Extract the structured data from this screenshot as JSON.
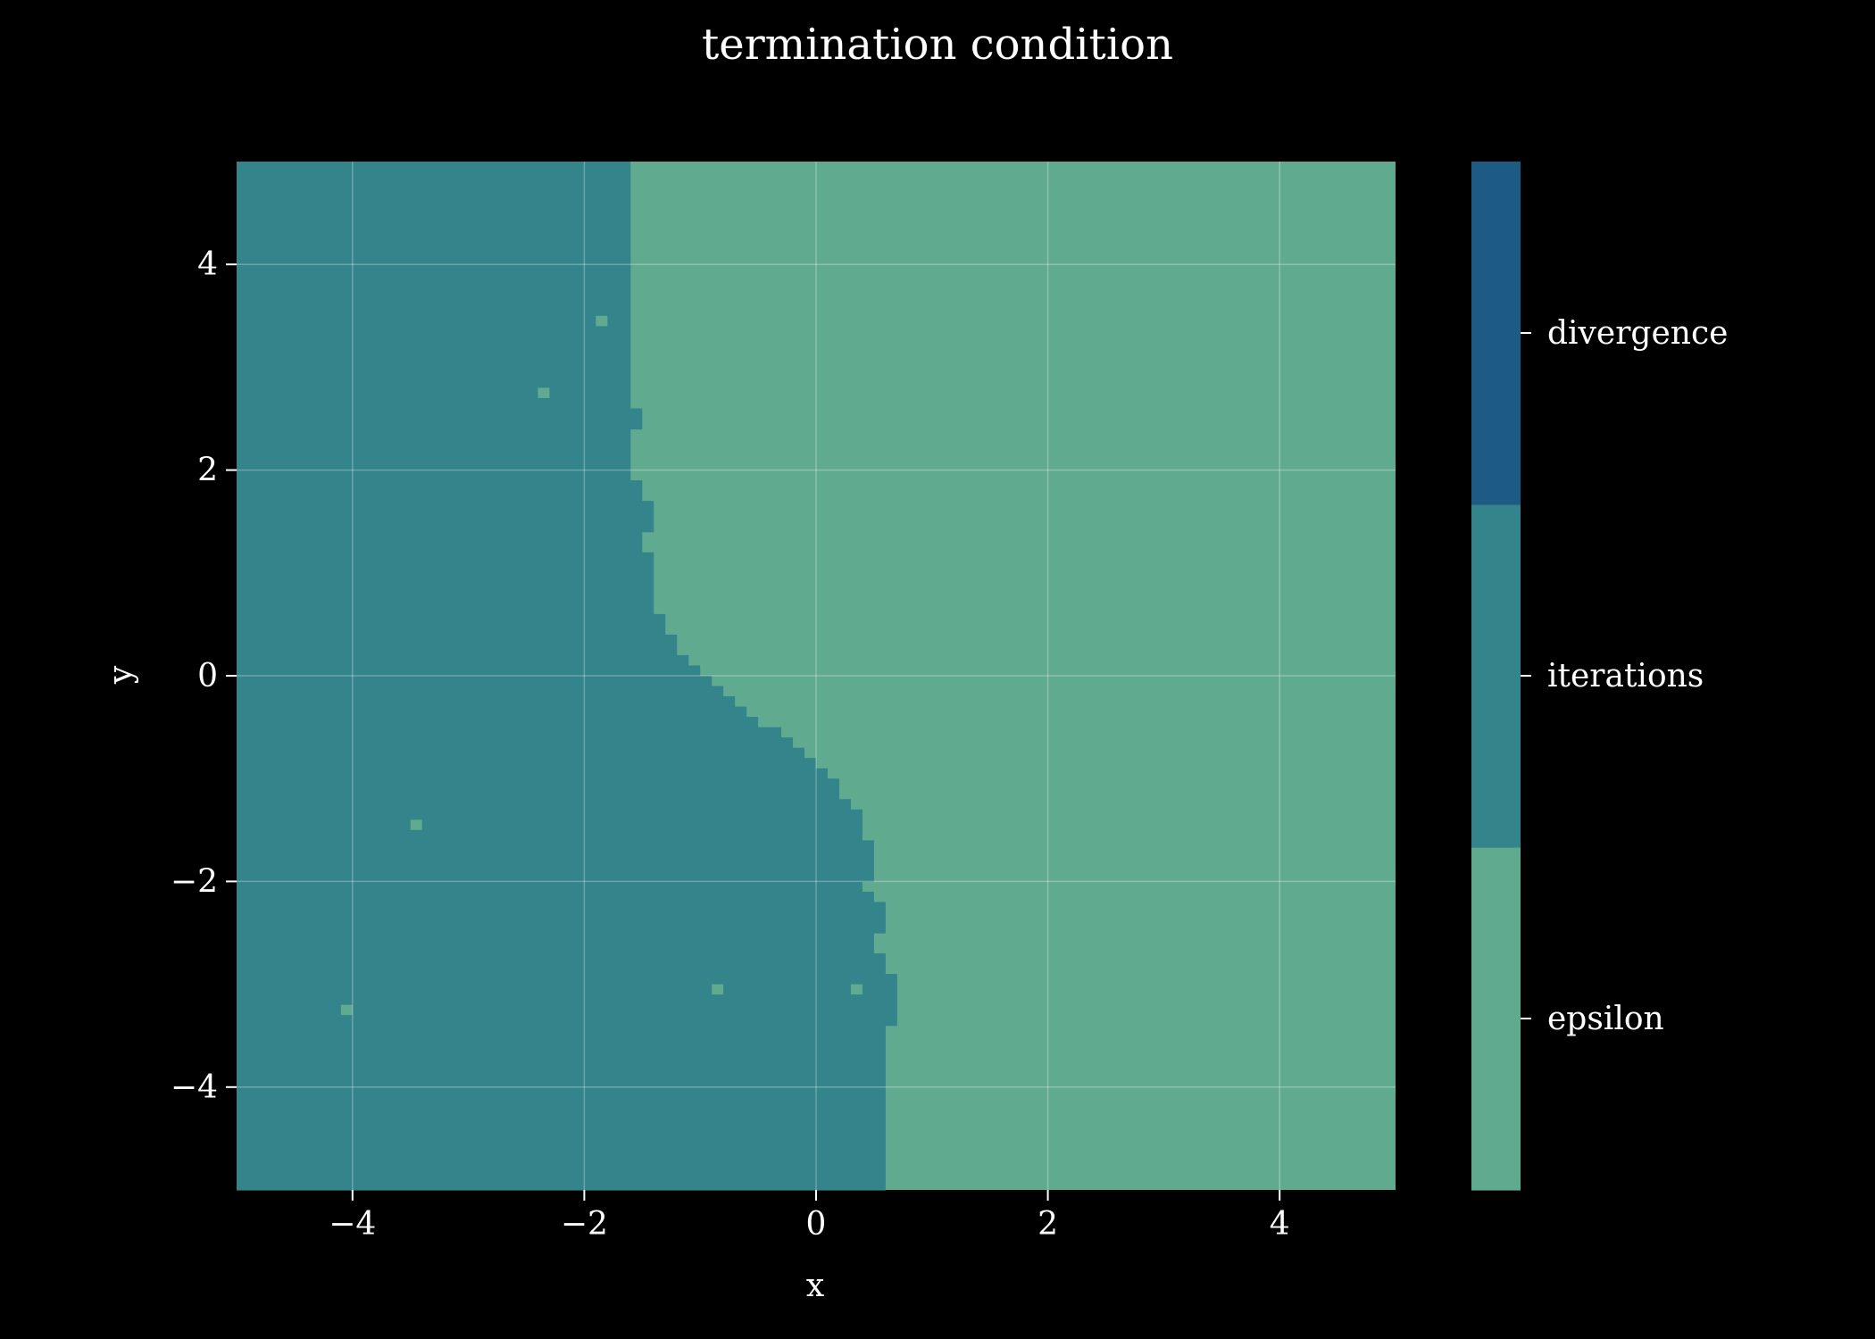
{
  "chart_data": {
    "type": "heatmap",
    "title": "termination condition",
    "xlabel": "x",
    "ylabel": "y",
    "xlim": [
      -5,
      5
    ],
    "ylim": [
      -5,
      5
    ],
    "xticks": [
      -4,
      -2,
      0,
      2,
      4
    ],
    "yticks": [
      -4,
      -2,
      0,
      2,
      4
    ],
    "grid": true,
    "categories": [
      {
        "name": "epsilon",
        "color": "#60aa8f"
      },
      {
        "name": "iterations",
        "color": "#33848b"
      },
      {
        "name": "divergence",
        "color": "#1d5a84"
      }
    ],
    "colorbar": {
      "range": [
        0,
        3
      ],
      "labels": [
        "epsilon",
        "iterations",
        "divergence"
      ]
    },
    "default_category": "epsilon",
    "region_category": "iterations",
    "boundary_description": "x-value of the iterations/epsilon boundary as a function of y; cells with x below it are iterations",
    "boundary": [
      {
        "y": [
          2.6,
          5.0
        ],
        "x": -1.6
      },
      {
        "y": [
          2.4,
          2.6
        ],
        "x": -1.5
      },
      {
        "y": [
          1.9,
          2.4
        ],
        "x": -1.6
      },
      {
        "y": [
          1.7,
          1.9
        ],
        "x": -1.5
      },
      {
        "y": [
          1.4,
          1.7
        ],
        "x": -1.4
      },
      {
        "y": [
          1.2,
          1.4
        ],
        "x": -1.5
      },
      {
        "y": [
          1.1,
          1.2
        ],
        "x": -1.4
      },
      {
        "y": [
          0.6,
          1.1
        ],
        "x": -1.4
      },
      {
        "y": [
          0.4,
          0.6
        ],
        "x": -1.3
      },
      {
        "y": [
          0.2,
          0.4
        ],
        "x": -1.2
      },
      {
        "y": [
          0.1,
          0.2
        ],
        "x": -1.1
      },
      {
        "y": [
          0.0,
          0.1
        ],
        "x": -1.0
      },
      {
        "y": [
          -0.1,
          0.0
        ],
        "x": -0.9
      },
      {
        "y": [
          -0.2,
          -0.1
        ],
        "x": -0.8
      },
      {
        "y": [
          -0.3,
          -0.2
        ],
        "x": -0.7
      },
      {
        "y": [
          -0.4,
          -0.3
        ],
        "x": -0.6
      },
      {
        "y": [
          -0.5,
          -0.4
        ],
        "x": -0.5
      },
      {
        "y": [
          -0.6,
          -0.5
        ],
        "x": -0.3
      },
      {
        "y": [
          -0.7,
          -0.6
        ],
        "x": -0.2
      },
      {
        "y": [
          -0.8,
          -0.7
        ],
        "x": -0.1
      },
      {
        "y": [
          -0.9,
          -0.8
        ],
        "x": 0.0
      },
      {
        "y": [
          -1.0,
          -0.9
        ],
        "x": 0.1
      },
      {
        "y": [
          -1.2,
          -1.0
        ],
        "x": 0.2
      },
      {
        "y": [
          -1.3,
          -1.2
        ],
        "x": 0.3
      },
      {
        "y": [
          -1.6,
          -1.3
        ],
        "x": 0.4
      },
      {
        "y": [
          -2.0,
          -1.6
        ],
        "x": 0.5
      },
      {
        "y": [
          -2.1,
          -2.0
        ],
        "x": 0.4
      },
      {
        "y": [
          -2.2,
          -2.1
        ],
        "x": 0.5
      },
      {
        "y": [
          -2.5,
          -2.2
        ],
        "x": 0.6
      },
      {
        "y": [
          -2.7,
          -2.5
        ],
        "x": 0.5
      },
      {
        "y": [
          -2.9,
          -2.7
        ],
        "x": 0.6
      },
      {
        "y": [
          -3.4,
          -2.9
        ],
        "x": 0.7
      },
      {
        "y": [
          -3.6,
          -3.4
        ],
        "x": 0.6
      },
      {
        "y": [
          -5.0,
          -3.6
        ],
        "x": 0.6
      }
    ],
    "stray_cells": [
      {
        "x": -1.9,
        "y": 3.4,
        "category": "epsilon"
      },
      {
        "x": -2.4,
        "y": 2.7,
        "category": "epsilon"
      },
      {
        "x": -3.5,
        "y": -1.5,
        "category": "epsilon"
      },
      {
        "x": -4.1,
        "y": -3.3,
        "category": "epsilon"
      },
      {
        "x": -0.9,
        "y": -3.1,
        "category": "epsilon"
      },
      {
        "x": 0.3,
        "y": -3.1,
        "category": "epsilon"
      }
    ]
  }
}
